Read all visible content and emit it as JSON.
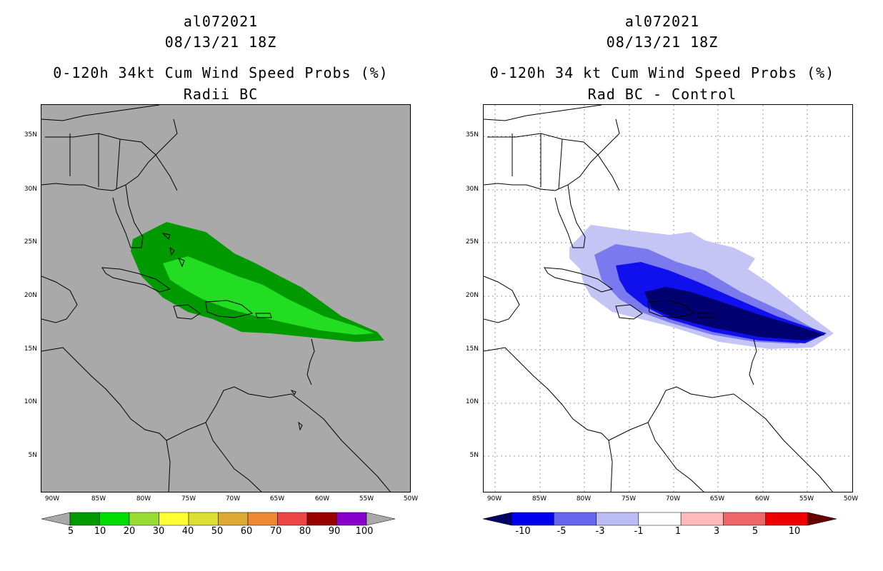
{
  "left": {
    "title1": "al072021",
    "title2": "08/13/21 18Z",
    "title3": "0-120h 34kt Cum Wind Speed Probs (%)",
    "title4": "Radii BC",
    "map_background": "#a9a9a9",
    "y_labels": [
      "35N",
      "30N",
      "25N",
      "20N",
      "15N",
      "10N",
      "5N"
    ],
    "x_labels": [
      "90W",
      "85W",
      "80W",
      "75W",
      "70W",
      "65W",
      "60W",
      "55W",
      "50W"
    ],
    "colorbar": {
      "colors": [
        "#a9a9a9",
        "#009900",
        "#00dd00",
        "#99dd33",
        "#ffff33",
        "#dddd33",
        "#ddaa33",
        "#ee8833",
        "#ee4444",
        "#990000",
        "#8800cc",
        "#a9a9a9"
      ],
      "labels": [
        "5",
        "10",
        "20",
        "30",
        "40",
        "50",
        "60",
        "70",
        "80",
        "90",
        "100"
      ]
    },
    "legend_colors": {
      "dark_green": "#009900",
      "bright_green": "#33ee33",
      "lime": "#44ff44"
    }
  },
  "right": {
    "title1": "al072021",
    "title2": "08/13/21 18Z",
    "title3": "0-120h 34 kt Cum Wind Speed Probs (%)",
    "title4": "Rad BC - Control",
    "map_background": "#ffffff",
    "y_labels": [
      "35N",
      "30N",
      "25N",
      "20N",
      "15N",
      "10N",
      "5N"
    ],
    "x_labels": [
      "90W",
      "85W",
      "80W",
      "75W",
      "70W",
      "65W",
      "60W",
      "55W",
      "50W"
    ],
    "colorbar": {
      "colors": [
        "#000066",
        "#0000ee",
        "#6666ee",
        "#bbbbf5",
        "#ffffff",
        "#ffbbbb",
        "#ee6666",
        "#ee0000",
        "#660000"
      ],
      "labels": [
        "-10",
        "-5",
        "-3",
        "-1",
        "1",
        "3",
        "5",
        "10"
      ]
    }
  }
}
